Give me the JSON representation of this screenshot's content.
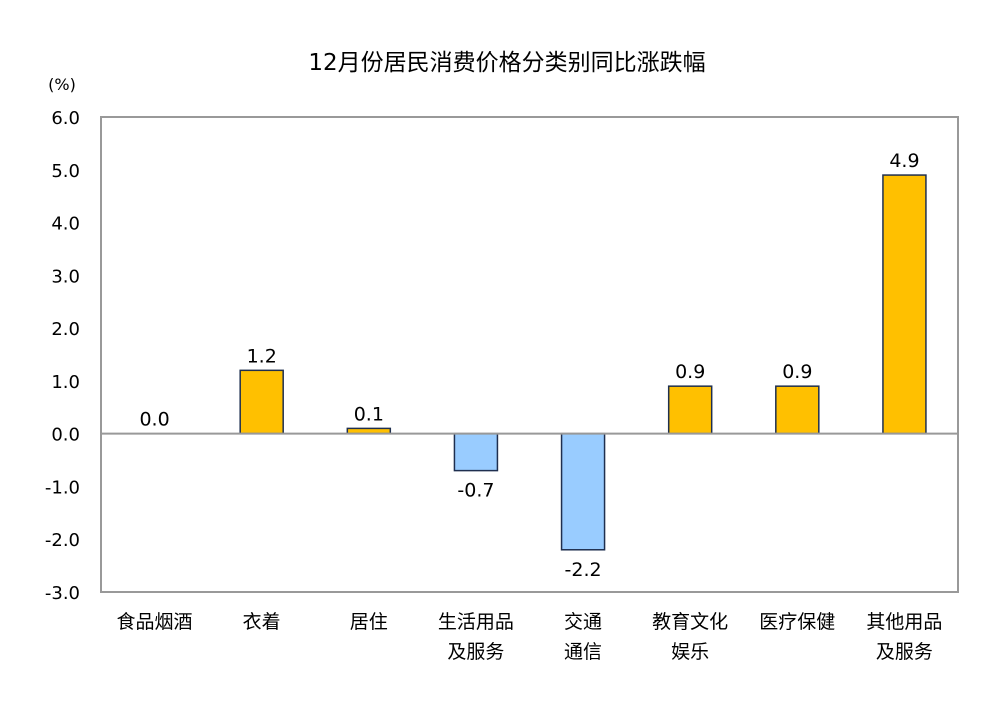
{
  "chart_data": {
    "type": "bar",
    "title": "12月份居民消费价格分类别同比涨跌幅",
    "ylabel": "(%)",
    "xlabel": "",
    "ylim": [
      -3.0,
      6.0
    ],
    "yticks": [
      "6.0",
      "5.0",
      "4.0",
      "3.0",
      "2.0",
      "1.0",
      "0.0",
      "-1.0",
      "-2.0",
      "-3.0"
    ],
    "grid": false,
    "categories": [
      [
        "食品烟酒"
      ],
      [
        "衣着"
      ],
      [
        "居住"
      ],
      [
        "生活用品",
        "及服务"
      ],
      [
        "交通",
        "通信"
      ],
      [
        "教育文化",
        "娱乐"
      ],
      [
        "医疗保健"
      ],
      [
        "其他用品",
        "及服务"
      ]
    ],
    "values": [
      0.0,
      1.2,
      0.1,
      -0.7,
      -2.2,
      0.9,
      0.9,
      4.9
    ],
    "data_labels": [
      "0.0",
      "1.2",
      "0.1",
      "-0.7",
      "-2.2",
      "0.9",
      "0.9",
      "4.9"
    ],
    "colors": {
      "positive": "#FFC000",
      "negative": "#99CCFF",
      "bar_border": "#1F2F4F",
      "axis": "#999999"
    }
  }
}
